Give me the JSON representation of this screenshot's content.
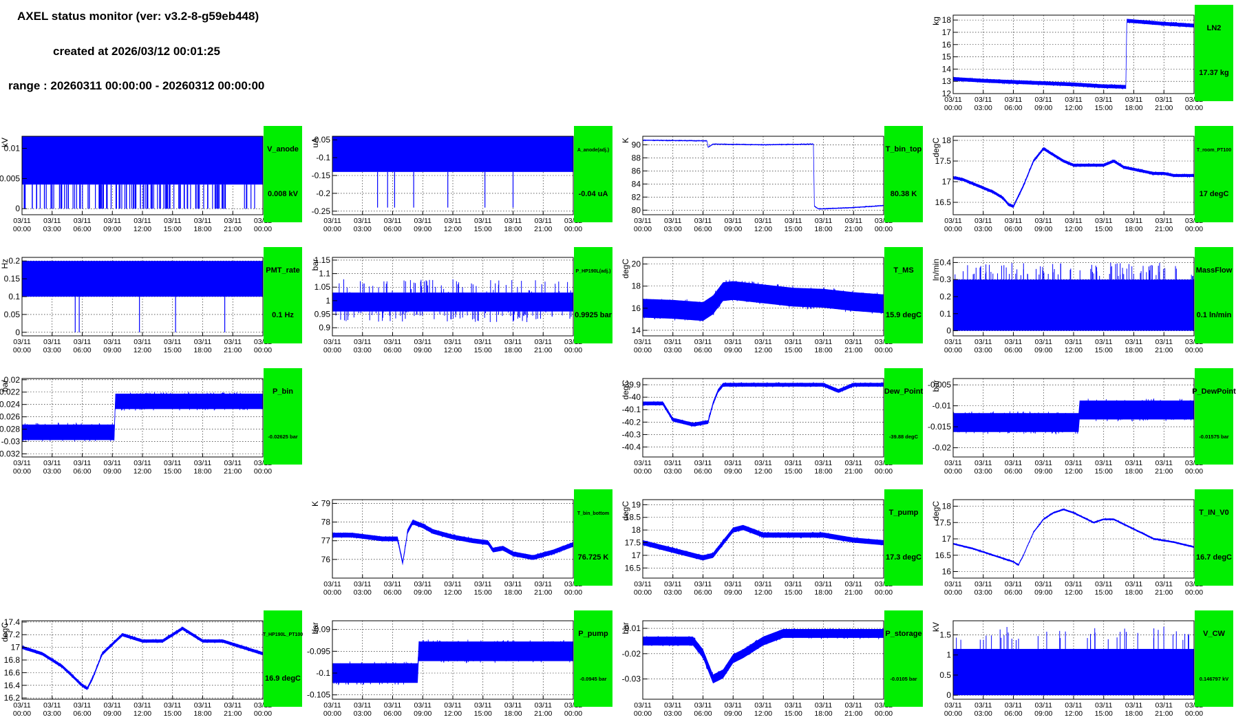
{
  "header": {
    "title": "AXEL status monitor (ver: v3.2-8-g59eb448)",
    "created": "created at 2026/03/12 00:01:25",
    "range": "range : 20260311 00:00:00 - 20260312 00:00:00"
  },
  "colors": {
    "trace": "#0000ff",
    "status_box": "#00ee00",
    "grid": "#000000"
  },
  "x_ticks": [
    [
      "03/11",
      "00:00"
    ],
    [
      "03/11",
      "03:00"
    ],
    [
      "03/11",
      "06:00"
    ],
    [
      "03/11",
      "09:00"
    ],
    [
      "03/11",
      "12:00"
    ],
    [
      "03/11",
      "15:00"
    ],
    [
      "03/11",
      "18:00"
    ],
    [
      "03/11",
      "21:00"
    ],
    [
      "03/12",
      "00:00"
    ]
  ],
  "chart_data": [
    {
      "id": "ln2",
      "type": "line",
      "ylabel": "kg",
      "name": "LN2",
      "value": "17.37 kg",
      "x": [
        0,
        3,
        6,
        9,
        12,
        15,
        17.2,
        17.3,
        18,
        21,
        24
      ],
      "y": [
        13.2,
        13.05,
        12.95,
        12.85,
        12.75,
        12.6,
        12.55,
        17.95,
        17.9,
        17.7,
        17.55
      ],
      "ylim": [
        12,
        18.4
      ],
      "yticks": [
        12,
        13,
        14,
        15,
        16,
        17,
        18
      ],
      "band": 0.3
    },
    {
      "id": "v_anode",
      "type": "line",
      "ylabel": "kV",
      "name": "V_anode",
      "value": "0.008 kV",
      "x": [
        0,
        24
      ],
      "y": [
        0.008,
        0.008
      ],
      "ylim": [
        -0.001,
        0.012
      ],
      "yticks": [
        0,
        0.005,
        0.01
      ],
      "fill": [
        0.004,
        0.012
      ],
      "drops": {
        "min": 0,
        "count": 120
      }
    },
    {
      "id": "a_anode",
      "type": "line",
      "ylabel": "uA",
      "name": "A_anode(adj.)",
      "value": "-0.04 uA",
      "x": [
        0,
        24
      ],
      "y": [
        -0.1,
        -0.1
      ],
      "ylim": [
        -0.26,
        -0.04
      ],
      "yticks": [
        -0.25,
        -0.2,
        -0.15,
        -0.1,
        -0.05
      ],
      "fill": [
        -0.14,
        -0.04
      ],
      "drops": {
        "min": -0.24,
        "times": [
          4.5,
          5.5,
          6.2,
          8.1,
          11.5,
          15.2,
          18
        ]
      }
    },
    {
      "id": "t_bin_top",
      "type": "line",
      "ylabel": "K",
      "name": "T_bin_top",
      "value": "80.38 K",
      "x": [
        0,
        6.4,
        6.5,
        7,
        12,
        17,
        17.1,
        17.5,
        18,
        21,
        24
      ],
      "y": [
        90.7,
        90.6,
        89.6,
        90.1,
        90,
        90.1,
        80.6,
        80.2,
        80.2,
        80.4,
        80.7
      ],
      "ylim": [
        79.3,
        91.3
      ],
      "yticks": [
        80,
        82,
        84,
        86,
        88,
        90
      ],
      "band": 0.15
    },
    {
      "id": "t_room_pt100",
      "type": "line",
      "ylabel": "degC",
      "name": "T_room_PT100",
      "value": "17 degC",
      "x": [
        0,
        1,
        2,
        3,
        4,
        5,
        5.5,
        6,
        7,
        8,
        9,
        10,
        11,
        12,
        13,
        15,
        16,
        17,
        18,
        19,
        20,
        21,
        22,
        24
      ],
      "y": [
        17.1,
        17.05,
        16.95,
        16.85,
        16.75,
        16.6,
        16.45,
        16.4,
        16.9,
        17.5,
        17.8,
        17.65,
        17.5,
        17.4,
        17.4,
        17.4,
        17.5,
        17.35,
        17.3,
        17.25,
        17.2,
        17.2,
        17.15,
        17.15
      ],
      "ylim": [
        16.2,
        18.1
      ],
      "yticks": [
        16.5,
        17,
        17.5,
        18
      ],
      "band": 0.07
    },
    {
      "id": "pmt_rate",
      "type": "line",
      "ylabel": "Hz",
      "name": "PMT_rate",
      "value": "0.1 Hz",
      "x": [
        0,
        24
      ],
      "y": [
        0.15,
        0.15
      ],
      "ylim": [
        -0.01,
        0.21
      ],
      "yticks": [
        0,
        0.05,
        0.1,
        0.15,
        0.2
      ],
      "fill": [
        0.1,
        0.2
      ],
      "drops": {
        "min": 0,
        "times": [
          5.3,
          5.7,
          11.7,
          15.3,
          20.2
        ]
      }
    },
    {
      "id": "p_hp190l",
      "type": "line",
      "ylabel": "bar",
      "name": "P_HP190L(adj.)",
      "value": "0.9925 bar",
      "x": [
        0,
        24
      ],
      "y": [
        0.99,
        0.99
      ],
      "ylim": [
        0.87,
        1.16
      ],
      "yticks": [
        0.9,
        0.95,
        1,
        1.05,
        1.1,
        1.15
      ],
      "fill": [
        0.96,
        1.03
      ],
      "noise": [
        0.92,
        1.08
      ]
    },
    {
      "id": "t_ms",
      "type": "line",
      "ylabel": "degC",
      "name": "T_MS",
      "value": "15.9 degC",
      "x": [
        0,
        3,
        6,
        7,
        8,
        9,
        10,
        12,
        15,
        18,
        21,
        24
      ],
      "y": [
        16,
        15.9,
        15.7,
        16.3,
        17.5,
        17.6,
        17.5,
        17.3,
        17,
        16.9,
        16.6,
        16.4
      ],
      "ylim": [
        13.5,
        20.6
      ],
      "yticks": [
        14,
        16,
        18,
        20
      ],
      "band": 1.7
    },
    {
      "id": "massflow",
      "type": "line",
      "ylabel": "ln/min",
      "name": "MassFlow",
      "value": "0.1 ln/min",
      "x": [
        0,
        24
      ],
      "y": [
        0.2,
        0.2
      ],
      "ylim": [
        -0.03,
        0.43
      ],
      "yticks": [
        0,
        0.1,
        0.2,
        0.3,
        0.4
      ],
      "fill": [
        0,
        0.3
      ],
      "spikes": {
        "max": 0.4,
        "count": 90
      }
    },
    {
      "id": "p_bin",
      "type": "line",
      "ylabel": "bar",
      "name": "P_bin",
      "value": "-0.02625 bar",
      "x": [
        0,
        9.2,
        9.3,
        24
      ],
      "y": [
        -0.0285,
        -0.0285,
        -0.0235,
        -0.0235
      ],
      "ylim": [
        -0.0325,
        -0.0198
      ],
      "yticks": [
        -0.032,
        -0.03,
        -0.028,
        -0.026,
        -0.024,
        -0.022,
        -0.02
      ],
      "band": 0.0025
    },
    {
      "id": "dew_point",
      "type": "line",
      "ylabel": "degC",
      "name": "Dew_Point",
      "value": "-39.88 degC",
      "x": [
        0,
        2,
        3,
        5,
        6.5,
        7,
        7.5,
        8,
        9,
        12,
        15,
        18,
        19.5,
        21,
        24
      ],
      "y": [
        -40.05,
        -40.05,
        -40.18,
        -40.22,
        -40.2,
        -40.05,
        -39.95,
        -39.9,
        -39.9,
        -39.9,
        -39.9,
        -39.9,
        -39.95,
        -39.9,
        -39.9
      ],
      "ylim": [
        -40.48,
        -39.85
      ],
      "yticks": [
        -40.4,
        -40.3,
        -40.2,
        -40.1,
        -40,
        -39.9
      ],
      "band": 0.03
    },
    {
      "id": "p_dewpoint",
      "type": "line",
      "ylabel": "bar",
      "name": "P_DewPoint",
      "value": "-0.01575 bar",
      "x": [
        0,
        12.5,
        12.6,
        24
      ],
      "y": [
        -0.014,
        -0.014,
        -0.011,
        -0.011
      ],
      "ylim": [
        -0.0222,
        -0.0035
      ],
      "yticks": [
        -0.02,
        -0.015,
        -0.01,
        -0.005
      ],
      "band": 0.0045
    },
    {
      "id": "t_bin_bottom",
      "type": "line",
      "ylabel": "K",
      "name": "T_bin_bottom",
      "value": "76.725 K",
      "x": [
        0,
        2,
        5,
        6.5,
        7,
        7.5,
        8,
        9,
        10,
        12,
        14,
        15.5,
        16,
        17,
        18,
        20,
        22,
        24
      ],
      "y": [
        77.3,
        77.3,
        77.1,
        77.1,
        75.8,
        77.5,
        78,
        77.8,
        77.5,
        77.2,
        77,
        76.9,
        76.5,
        76.6,
        76.3,
        76.1,
        76.4,
        76.8
      ],
      "ylim": [
        75,
        79.2
      ],
      "yticks": [
        76,
        77,
        78,
        79
      ],
      "band": 0.25
    },
    {
      "id": "t_pump",
      "type": "line",
      "ylabel": "degC",
      "name": "T_pump",
      "value": "17.3 degC",
      "x": [
        0,
        3,
        6,
        7,
        8,
        9,
        10,
        12,
        15,
        18,
        21,
        24
      ],
      "y": [
        17.5,
        17.2,
        16.9,
        17,
        17.5,
        18,
        18.1,
        17.8,
        17.8,
        17.8,
        17.6,
        17.5
      ],
      "ylim": [
        16.1,
        19.2
      ],
      "yticks": [
        16.5,
        17,
        17.5,
        18,
        18.5,
        19
      ],
      "band": 0.2
    },
    {
      "id": "t_in_v0",
      "type": "line",
      "ylabel": "degC",
      "name": "T_IN_V0",
      "value": "16.7 degC",
      "x": [
        0,
        2,
        4,
        6,
        6.5,
        7,
        8,
        9,
        10,
        11,
        12,
        14,
        15,
        16,
        18,
        20,
        22,
        24
      ],
      "y": [
        16.85,
        16.7,
        16.5,
        16.3,
        16.2,
        16.5,
        17.2,
        17.6,
        17.8,
        17.9,
        17.8,
        17.5,
        17.6,
        17.6,
        17.3,
        17,
        16.9,
        16.75
      ],
      "ylim": [
        15.8,
        18.2
      ],
      "yticks": [
        16,
        16.5,
        17,
        17.5,
        18
      ],
      "band": 0.05
    },
    {
      "id": "t_hp190l_pt100",
      "type": "line",
      "ylabel": "degC",
      "name": "T_HP190L_PT100",
      "value": "16.9 degC",
      "x": [
        0,
        2,
        4,
        6,
        6.5,
        7,
        8,
        10,
        12,
        14,
        16,
        17,
        18,
        20,
        22,
        24
      ],
      "y": [
        17,
        16.9,
        16.7,
        16.4,
        16.35,
        16.5,
        16.9,
        17.2,
        17.1,
        17.1,
        17.3,
        17.2,
        17.1,
        17.1,
        17,
        16.9
      ],
      "ylim": [
        16.18,
        17.42
      ],
      "yticks": [
        16.2,
        16.4,
        16.6,
        16.8,
        17,
        17.2,
        17.4
      ],
      "band": 0.05
    },
    {
      "id": "p_pump",
      "type": "line",
      "ylabel": "bar",
      "name": "P_pump",
      "value": "-0.0945 bar",
      "x": [
        0,
        8.5,
        8.6,
        24
      ],
      "y": [
        -0.1,
        -0.1,
        -0.095,
        -0.095
      ],
      "ylim": [
        -0.106,
        -0.088
      ],
      "yticks": [
        -0.105,
        -0.1,
        -0.095,
        -0.09
      ],
      "band": 0.0045
    },
    {
      "id": "p_storage",
      "type": "line",
      "ylabel": "bar",
      "name": "P_storage",
      "value": "-0.0105 bar",
      "x": [
        0,
        5,
        6,
        7,
        8,
        9,
        10,
        12,
        14,
        24
      ],
      "y": [
        -0.015,
        -0.015,
        -0.02,
        -0.03,
        -0.028,
        -0.022,
        -0.02,
        -0.015,
        -0.012,
        -0.012
      ],
      "ylim": [
        -0.038,
        -0.007
      ],
      "yticks": [
        -0.03,
        -0.02,
        -0.01
      ],
      "band": 0.0035
    },
    {
      "id": "v_cw",
      "type": "line",
      "ylabel": "kV",
      "name": "V_CW",
      "value": "0.146797 kV",
      "x": [
        0,
        24
      ],
      "y": [
        0.6,
        0.6
      ],
      "ylim": [
        -0.1,
        1.85
      ],
      "yticks": [
        0,
        0.5,
        1,
        1.5
      ],
      "fill": [
        0,
        1.15
      ],
      "spikes": {
        "max": 1.7,
        "count": 40
      }
    }
  ]
}
